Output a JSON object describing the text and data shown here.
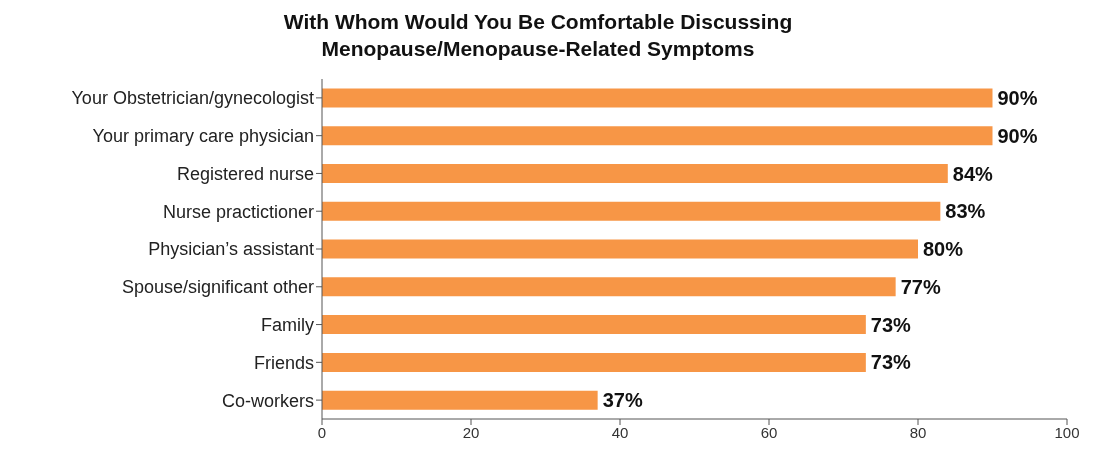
{
  "chart_data": {
    "type": "bar",
    "orientation": "horizontal",
    "title": "With Whom Would You Be Comfortable Discussing\nMenopause/Menopause-Related Symptoms",
    "categories": [
      "Your Obstetrician/gynecologist",
      "Your primary care physician",
      "Registered nurse",
      "Nurse practictioner",
      "Physician’s assistant",
      "Spouse/significant other",
      "Family",
      "Friends",
      "Co-workers"
    ],
    "values": [
      90,
      90,
      84,
      83,
      80,
      77,
      73,
      73,
      37
    ],
    "value_labels": [
      "90%",
      "90%",
      "84%",
      "83%",
      "80%",
      "77%",
      "73%",
      "73%",
      "37%"
    ],
    "color": "#f79646",
    "xlim": [
      0,
      100
    ],
    "xticks": [
      0,
      20,
      40,
      60,
      80,
      100
    ]
  }
}
